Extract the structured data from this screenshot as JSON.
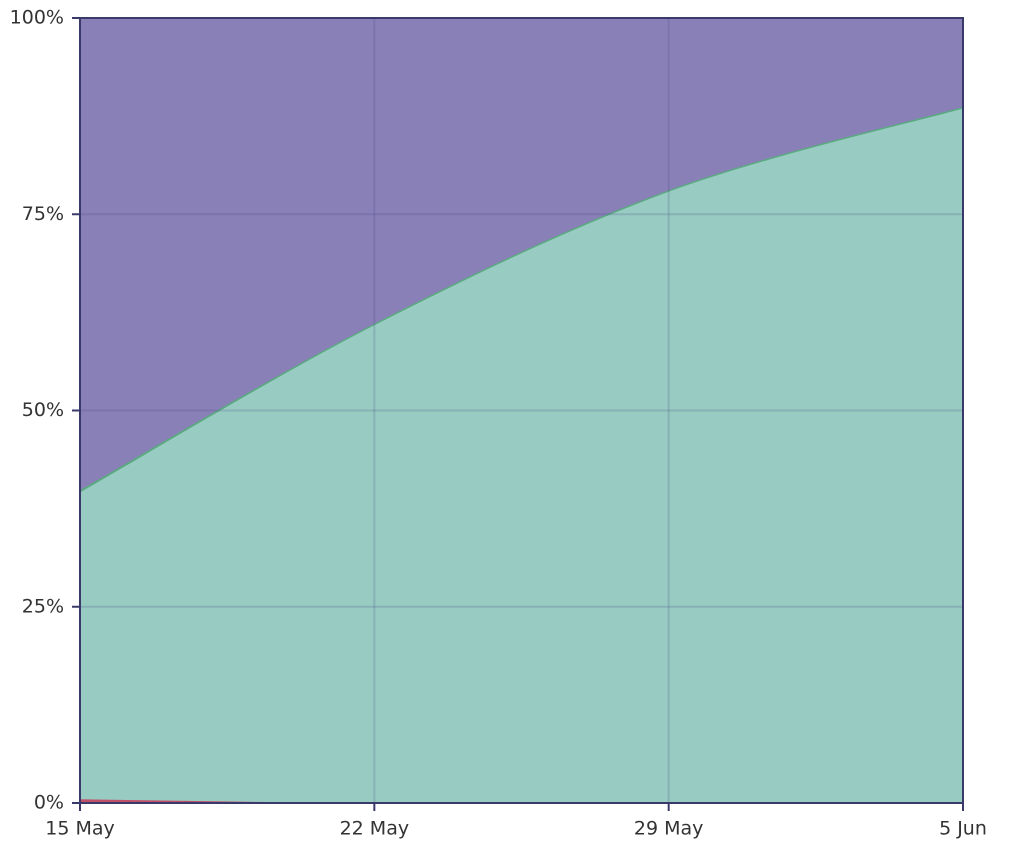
{
  "chart_data": {
    "type": "stacked_area",
    "categories": [
      "15 May",
      "22 May",
      "29 May",
      "5 Jun"
    ],
    "series": [
      {
        "color": "#c0506a",
        "values": [
          0.6,
          0.1,
          0.1,
          0.1
        ]
      },
      {
        "color": "#98cbc1",
        "values": [
          39.1,
          60.9,
          77.9,
          88.5
        ]
      },
      {
        "color": "#5aaa80",
        "values": [
          0.3,
          0.2,
          0.2,
          0.2
        ]
      },
      {
        "color": "#8a80b8",
        "values": [
          60,
          38.8,
          21.8,
          11.2
        ]
      }
    ],
    "ylim": [
      0,
      100
    ],
    "yticks": [
      {
        "value": 0,
        "label": "0%"
      },
      {
        "value": 25,
        "label": "25%"
      },
      {
        "value": 50,
        "label": "50%"
      },
      {
        "value": 75,
        "label": "75%"
      },
      {
        "value": 100,
        "label": "100%"
      }
    ],
    "grid": true
  }
}
